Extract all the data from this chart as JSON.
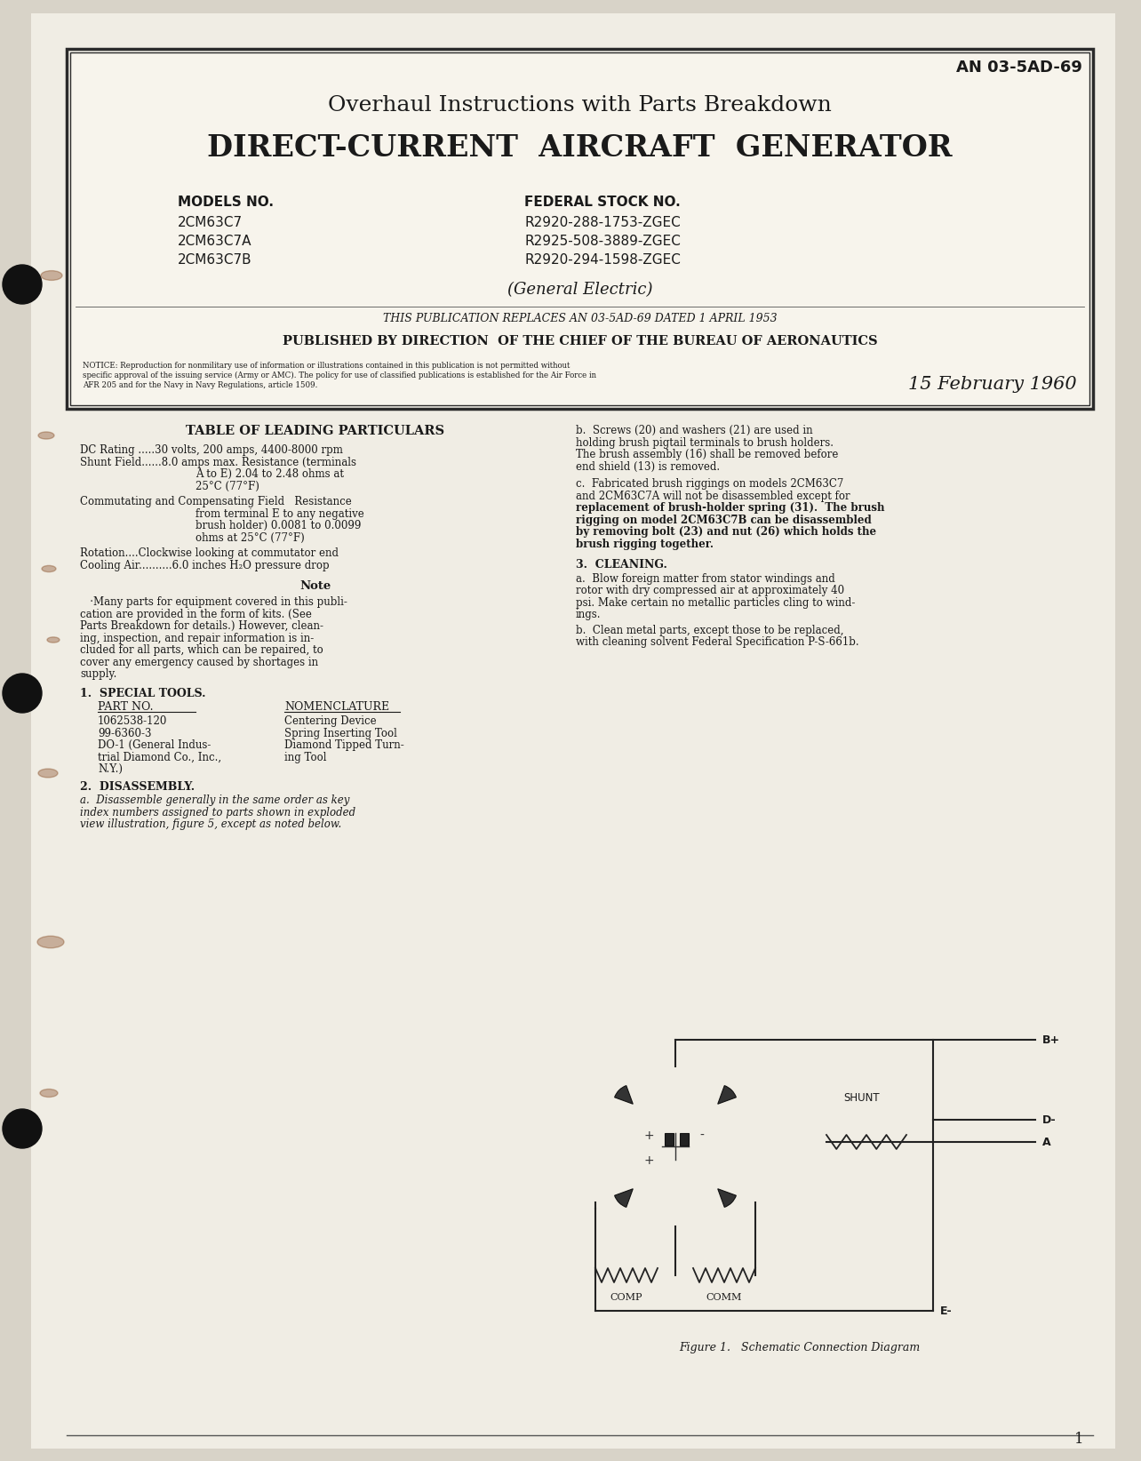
{
  "bg_color": "#d8d3c8",
  "paper_color": "#f0ede4",
  "text_color": "#1a1a1a",
  "title_an": "AN 03-5AD-69",
  "title_line1": "Overhaul Instructions with Parts Breakdown",
  "title_line2": "DIRECT-CURRENT  AIRCRAFT  GENERATOR",
  "models_header": "MODELS NO.",
  "models": [
    "2CM63C7",
    "2CM63C7A",
    "2CM63C7B"
  ],
  "stock_header": "FEDERAL STOCK NO.",
  "stocks": [
    "R2920-288-1753-ZGEC",
    "R2925-508-3889-ZGEC",
    "R2920-294-1598-ZGEC"
  ],
  "general_electric": "(General Electric)",
  "replaces": "THIS PUBLICATION REPLACES AN 03-5AD-69 DATED 1 APRIL 1953",
  "published": "PUBLISHED BY DIRECTION  OF THE CHIEF OF THE BUREAU OF AERONAUTICS",
  "notice_line1": "NOTICE: Reproduction for nonmilitary use of information or illustrations contained in this publication is not permitted without",
  "notice_line2": "specific approval of the issuing service (Army or AMC). The policy for use of classified publications is established for the Air Force in",
  "notice_line3": "AFR 205 and for the Navy in Navy Regulations, article 1509.",
  "date": "15 February 1960",
  "section_table": "TABLE OF LEADING PARTICULARS",
  "particular1": "DC Rating .....30 volts, 200 amps, 4400-8000 rpm",
  "particular2a": "Shunt Field......8.0 amps max. Resistance (terminals",
  "particular2b": "A to E) 2.04 to 2.48 ohms at",
  "particular2c": "25°C (77°F)",
  "particular3a": "Commutating and Compensating Field   Resistance",
  "particular3b": "from terminal E to any negative",
  "particular3c": "brush holder) 0.0081 to 0.0099",
  "particular3d": "ohms at 25°C (77°F)",
  "particular4": "Rotation....Clockwise looking at commutator end",
  "particular5": "Cooling Air..........6.0 inches H₂O pressure drop",
  "note_title": "Note",
  "note_text1": "   ·Many parts for equipment covered in this publi-",
  "note_text2": "cation are provided in the form of kits. (See",
  "note_text3": "Parts Breakdown for details.) However, clean-",
  "note_text4": "ing, inspection, and repair information is in-",
  "note_text5": "cluded for all parts, which can be repaired, to",
  "note_text6": "cover any emergency caused by shortages in",
  "note_text7": "supply.",
  "section1": "1.  SPECIAL TOOLS.",
  "part_no_header": "PART NO.",
  "nomenclature_header": "NOMENCLATURE",
  "tool1_part": "1062538-120",
  "tool1_nom": "Centering Device",
  "tool2_part": "99-6360-3",
  "tool2_nom": "Spring Inserting Tool",
  "tool3_part_1": "DO-1 (General Indus-",
  "tool3_part_2": "trial Diamond Co., Inc.,",
  "tool3_part_3": "N.Y.)",
  "tool3_nom_1": "Diamond Tipped Turn-",
  "tool3_nom_2": "ing Tool",
  "section2": "2.  DISASSEMBLY.",
  "disassembly_a1": "a.  Disassemble generally in the same order as key",
  "disassembly_a2": "index numbers assigned to parts shown in exploded",
  "disassembly_a3": "view illustration, figure 5, except as noted below.",
  "right_b1": "b.  Screws (20) and washers (21) are used in",
  "right_b2": "holding brush pigtail terminals to brush holders.",
  "right_b3": "The brush assembly (16) shall be removed before",
  "right_b4": "end shield (13) is removed.",
  "right_c1": "c.  Fabricated brush riggings on models 2CM63C7",
  "right_c2": "and 2CM63C7A will not be disassembled except for",
  "right_c3": "replacement of brush-holder spring (31).  The brush",
  "right_c4": "rigging on model 2CM63C7B can be disassembled",
  "right_c5": "by removing bolt (23) and nut (26) which holds the",
  "right_c6": "brush rigging together.",
  "section3": "3.  CLEANING.",
  "clean_a1": "a.  Blow foreign matter from stator windings and",
  "clean_a2": "rotor with dry compressed air at approximately 40",
  "clean_a3": "psi. Make certain no metallic particles cling to wind-",
  "clean_a4": "ings.",
  "clean_b1": "b.  Clean metal parts, except those to be replaced,",
  "clean_b2": "with cleaning solvent Federal Specification P-S-661b.",
  "figure_caption": "Figure 1.   Schematic Connection Diagram",
  "page_number": "1"
}
